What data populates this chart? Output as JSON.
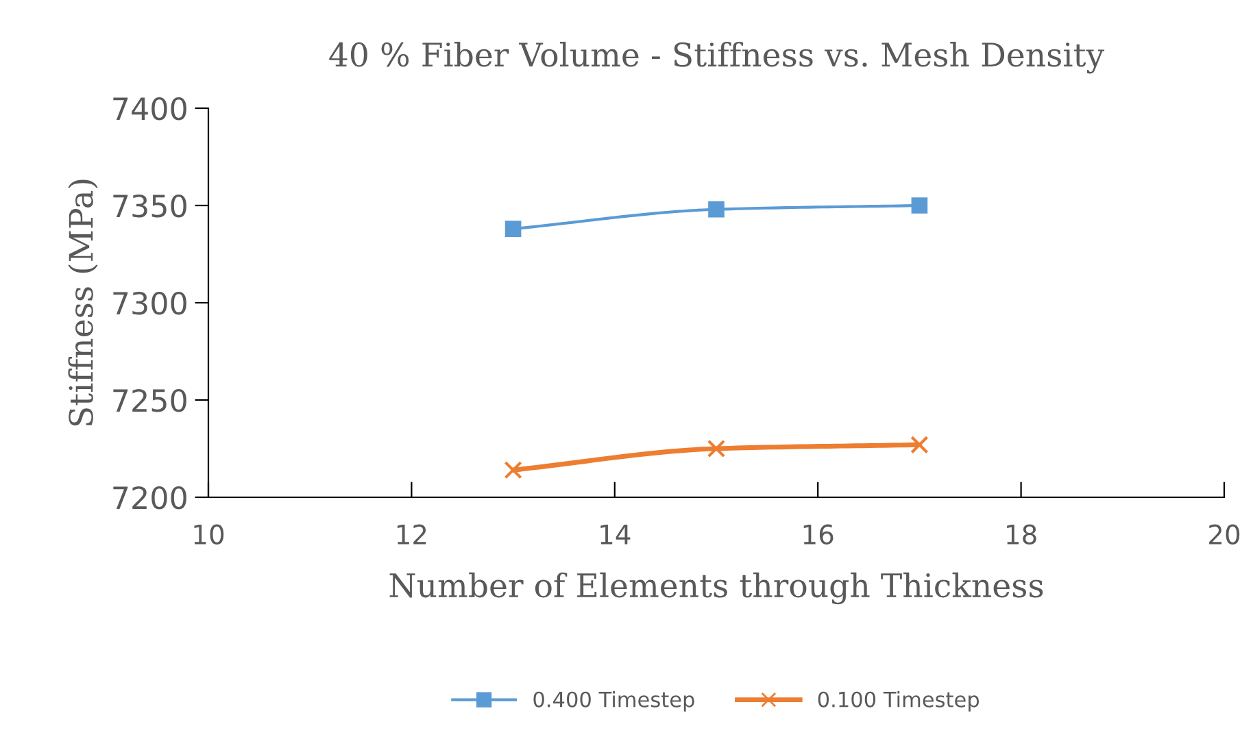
{
  "chart_data": {
    "type": "line",
    "title": "40 % Fiber Volume - Stiffness vs. Mesh Density",
    "xlabel": "Number of Elements through Thickness",
    "ylabel": "Stiffness (MPa)",
    "x": [
      13,
      15,
      17
    ],
    "series": [
      {
        "name": "0.400 Timestep",
        "color": "#5b9bd5",
        "marker": "square",
        "values": [
          7338,
          7348,
          7350
        ]
      },
      {
        "name": "0.100 Timestep",
        "color": "#ed7d31",
        "marker": "cross",
        "values": [
          7214,
          7225,
          7227
        ]
      }
    ],
    "xlim": [
      10,
      20
    ],
    "xticks": [
      10,
      12,
      14,
      16,
      18,
      20
    ],
    "ylim": [
      7200,
      7400
    ],
    "yticks": [
      7200,
      7250,
      7300,
      7350,
      7400
    ],
    "grid": false,
    "legend": "bottom",
    "line_style": "solid"
  }
}
